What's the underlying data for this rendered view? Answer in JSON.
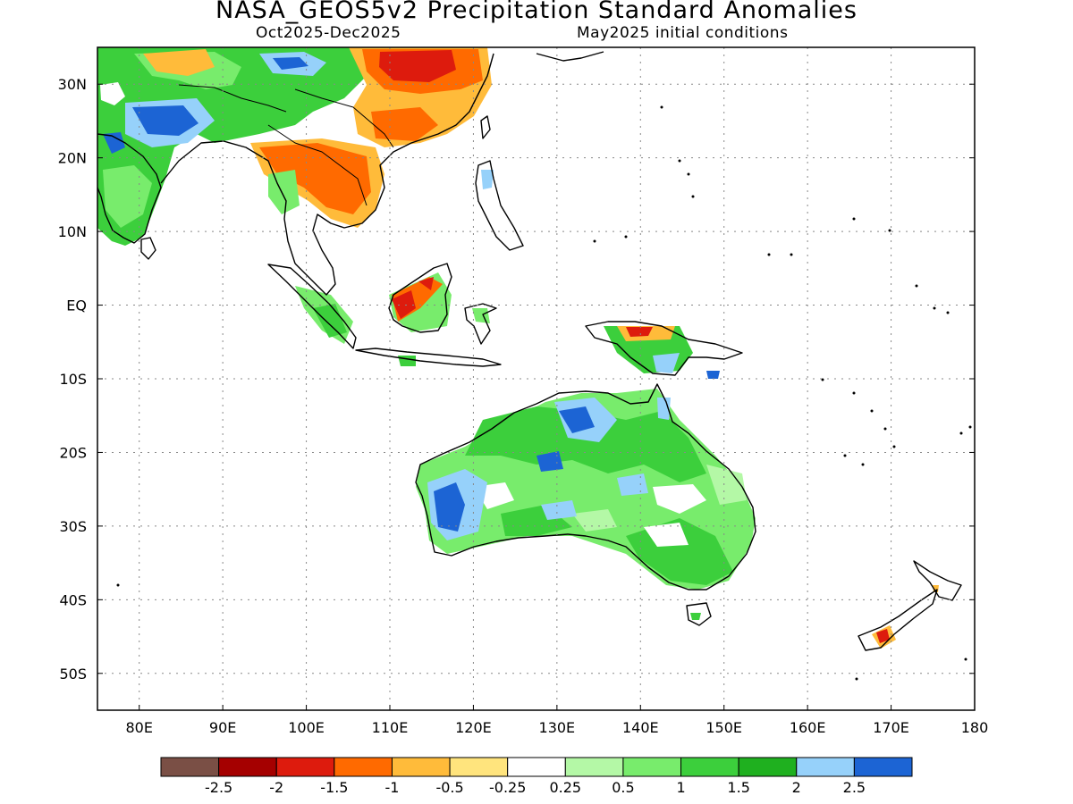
{
  "header": {
    "title": "NASA_GEOS5v2 Precipitation Standard Anomalies",
    "period": "Oct2025-Dec2025",
    "init": "May2025 initial conditions"
  },
  "map": {
    "lon_range": [
      75,
      180
    ],
    "lat_range": [
      -55,
      35
    ],
    "lat_ticks": [
      {
        "lat": 30,
        "label": "30N"
      },
      {
        "lat": 20,
        "label": "20N"
      },
      {
        "lat": 10,
        "label": "10N"
      },
      {
        "lat": 0,
        "label": "EQ"
      },
      {
        "lat": -10,
        "label": "10S"
      },
      {
        "lat": -20,
        "label": "20S"
      },
      {
        "lat": -30,
        "label": "30S"
      },
      {
        "lat": -40,
        "label": "40S"
      },
      {
        "lat": -50,
        "label": "50S"
      }
    ],
    "lon_ticks": [
      {
        "lon": 80,
        "label": "80E"
      },
      {
        "lon": 90,
        "label": "90E"
      },
      {
        "lon": 100,
        "label": "100E"
      },
      {
        "lon": 110,
        "label": "110E"
      },
      {
        "lon": 120,
        "label": "120E"
      },
      {
        "lon": 130,
        "label": "130E"
      },
      {
        "lon": 140,
        "label": "140E"
      },
      {
        "lon": 150,
        "label": "150E"
      },
      {
        "lon": 160,
        "label": "160E"
      },
      {
        "lon": 170,
        "label": "170E"
      },
      {
        "lon": 180,
        "label": "180"
      }
    ]
  },
  "colorbar": {
    "colors": [
      "#7a4f45",
      "#a50000",
      "#dd1b0d",
      "#ff6a00",
      "#ffbb3a",
      "#ffe47d",
      "#ffffff",
      "#b4f8a6",
      "#78ec6c",
      "#3ccf3c",
      "#1fb01f",
      "#96d1fa",
      "#1c64d4"
    ],
    "labels": [
      "-2.5",
      "-2",
      "-1.5",
      "-1",
      "-0.5",
      "-0.25",
      "0.25",
      "0.5",
      "1",
      "1.5",
      "2",
      "2.5"
    ]
  },
  "anomaly_regions": [
    {
      "name": "india",
      "level": "1.5",
      "color": "#3ccf3c"
    },
    {
      "name": "india-west-wet",
      "level": "2.5",
      "color": "#1c64d4"
    },
    {
      "name": "south-china-dry",
      "level": "-1.5",
      "color": "#dd1b0d"
    },
    {
      "name": "indochina-dry",
      "level": "-1",
      "color": "#ff6a00"
    },
    {
      "name": "borneo-dry",
      "level": "-1.5",
      "color": "#dd1b0d"
    },
    {
      "name": "australia-wet",
      "level": "1",
      "color": "#78ec6c"
    },
    {
      "name": "australia-west-wet",
      "level": "2.5",
      "color": "#1c64d4"
    },
    {
      "name": "new-guinea-dry",
      "level": "-1.5",
      "color": "#dd1b0d"
    },
    {
      "name": "new-zealand-dry",
      "level": "-1.5",
      "color": "#dd1b0d"
    }
  ]
}
